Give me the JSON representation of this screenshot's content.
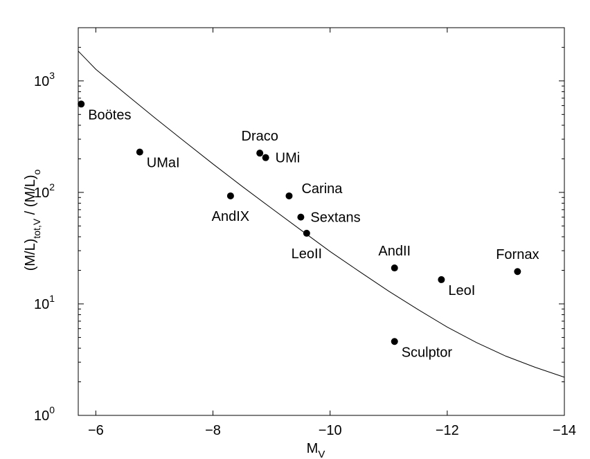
{
  "chart_data": {
    "type": "scatter",
    "xlabel": "M",
    "xlabel_sub": "V",
    "ylabel_parts": [
      {
        "text": "(M/L)",
        "sub": "tot,V"
      },
      {
        "text": "  /  (M/L)",
        "sub": "o"
      }
    ],
    "x_reversed": true,
    "xlim": [
      -5.7,
      -14
    ],
    "ylim": [
      1,
      3000
    ],
    "y_scale": "log",
    "grid": false,
    "x_ticks": [
      {
        "value": -6,
        "label": "−6"
      },
      {
        "value": -8,
        "label": "−8"
      },
      {
        "value": -10,
        "label": "−10"
      },
      {
        "value": -12,
        "label": "−12"
      },
      {
        "value": -14,
        "label": "−14"
      }
    ],
    "y_ticks": [
      {
        "value": 1,
        "base": "10",
        "exp": "0"
      },
      {
        "value": 10,
        "base": "10",
        "exp": "1"
      },
      {
        "value": 100,
        "base": "10",
        "exp": "2"
      },
      {
        "value": 1000,
        "base": "10",
        "exp": "3"
      }
    ],
    "points": [
      {
        "name": "Boötes",
        "x": -5.75,
        "y": 620,
        "label_pos": "right-below"
      },
      {
        "name": "UMaI",
        "x": -6.75,
        "y": 230,
        "label_pos": "right-below"
      },
      {
        "name": "AndIX",
        "x": -8.3,
        "y": 93,
        "label_pos": "below"
      },
      {
        "name": "Draco",
        "x": -8.8,
        "y": 225,
        "label_pos": "above"
      },
      {
        "name": "UMi",
        "x": -8.9,
        "y": 205,
        "label_pos": "right"
      },
      {
        "name": "Carina",
        "x": -9.3,
        "y": 93,
        "label_pos": "right-above"
      },
      {
        "name": "Sextans",
        "x": -9.5,
        "y": 60,
        "label_pos": "right"
      },
      {
        "name": "LeoII",
        "x": -9.6,
        "y": 43,
        "label_pos": "below"
      },
      {
        "name": "AndII",
        "x": -11.1,
        "y": 21,
        "label_pos": "above"
      },
      {
        "name": "LeoI",
        "x": -11.9,
        "y": 16.5,
        "label_pos": "right-below"
      },
      {
        "name": "Fornax",
        "x": -13.2,
        "y": 19.5,
        "label_pos": "above"
      },
      {
        "name": "Sculptor",
        "x": -11.1,
        "y": 4.6,
        "label_pos": "right-below"
      }
    ],
    "curve": {
      "x": [
        -5.7,
        -6.0,
        -6.5,
        -7.0,
        -7.5,
        -8.0,
        -8.5,
        -9.0,
        -9.5,
        -10.0,
        -10.5,
        -11.0,
        -11.5,
        -12.0,
        -12.5,
        -13.0,
        -13.5,
        -14.0
      ],
      "y": [
        1850,
        1270,
        770,
        470,
        290,
        180,
        113,
        72,
        46,
        29.5,
        19.5,
        13.0,
        8.9,
        6.2,
        4.5,
        3.4,
        2.7,
        2.2
      ]
    }
  }
}
